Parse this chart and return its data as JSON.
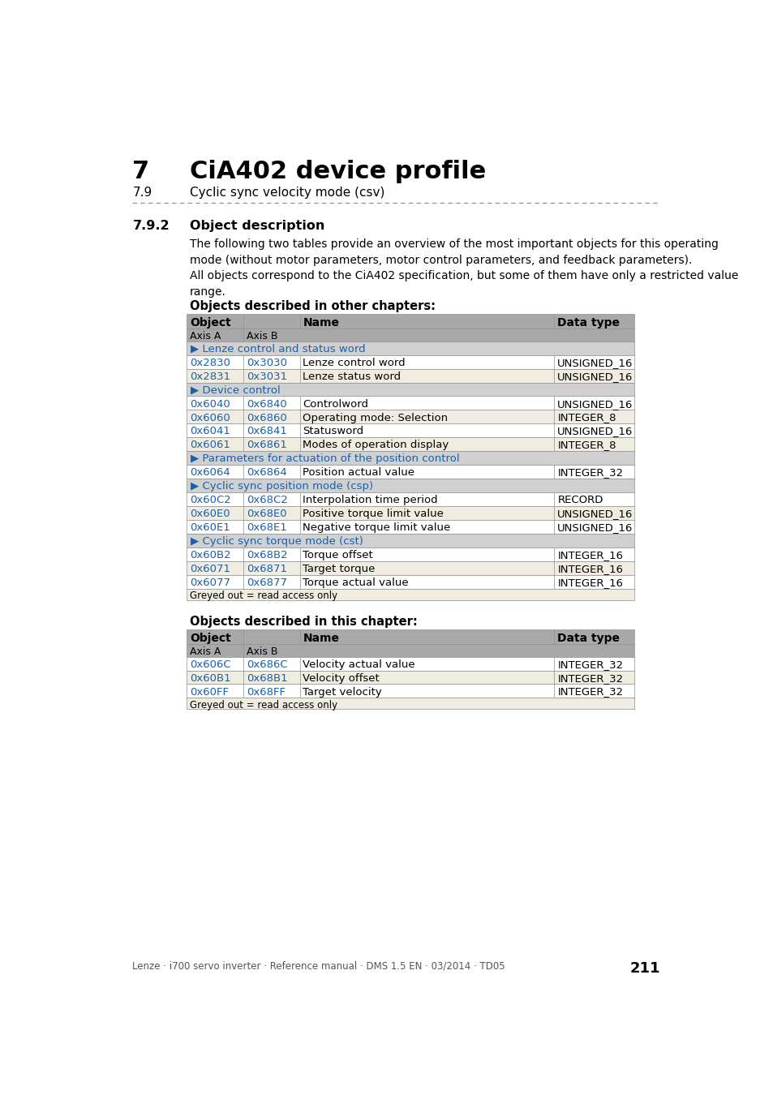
{
  "page_title_num": "7",
  "page_title": "CiA402 device profile",
  "page_subtitle_num": "7.9",
  "page_subtitle": "Cyclic sync velocity mode (csv)",
  "section_num": "7.9.2",
  "section_title": "Object description",
  "para1": "The following two tables provide an overview of the most important objects for this operating\nmode (without motor parameters, motor control parameters, and feedback parameters).",
  "para2": "All objects correspond to the CiA402 specification, but some of them have only a restricted value\nrange.",
  "table1_title": "Objects described in other chapters:",
  "table1_rows": [
    {
      "type": "section",
      "text": "▶ Lenze control and status word"
    },
    {
      "type": "data",
      "axisA": "0x2830",
      "axisB": "0x3030",
      "name": "Lenze control word",
      "dtype": "UNSIGNED_16",
      "shaded": false
    },
    {
      "type": "data",
      "axisA": "0x2831",
      "axisB": "0x3031",
      "name": "Lenze status word",
      "dtype": "UNSIGNED_16",
      "shaded": true
    },
    {
      "type": "section",
      "text": "▶ Device control"
    },
    {
      "type": "data",
      "axisA": "0x6040",
      "axisB": "0x6840",
      "name": "Controlword",
      "dtype": "UNSIGNED_16",
      "shaded": false
    },
    {
      "type": "data",
      "axisA": "0x6060",
      "axisB": "0x6860",
      "name": "Operating mode: Selection",
      "dtype": "INTEGER_8",
      "shaded": true
    },
    {
      "type": "data",
      "axisA": "0x6041",
      "axisB": "0x6841",
      "name": "Statusword",
      "dtype": "UNSIGNED_16",
      "shaded": false
    },
    {
      "type": "data",
      "axisA": "0x6061",
      "axisB": "0x6861",
      "name": "Modes of operation display",
      "dtype": "INTEGER_8",
      "shaded": true
    },
    {
      "type": "section",
      "text": "▶ Parameters for actuation of the position control"
    },
    {
      "type": "data",
      "axisA": "0x6064",
      "axisB": "0x6864",
      "name": "Position actual value",
      "dtype": "INTEGER_32",
      "shaded": false
    },
    {
      "type": "section",
      "text": "▶ Cyclic sync position mode (csp)"
    },
    {
      "type": "data",
      "axisA": "0x60C2",
      "axisB": "0x68C2",
      "name": "Interpolation time period",
      "dtype": "RECORD",
      "shaded": false
    },
    {
      "type": "data",
      "axisA": "0x60E0",
      "axisB": "0x68E0",
      "name": "Positive torque limit value",
      "dtype": "UNSIGNED_16",
      "shaded": true
    },
    {
      "type": "data",
      "axisA": "0x60E1",
      "axisB": "0x68E1",
      "name": "Negative torque limit value",
      "dtype": "UNSIGNED_16",
      "shaded": false
    },
    {
      "type": "section",
      "text": "▶ Cyclic sync torque mode (cst)"
    },
    {
      "type": "data",
      "axisA": "0x60B2",
      "axisB": "0x68B2",
      "name": "Torque offset",
      "dtype": "INTEGER_16",
      "shaded": false
    },
    {
      "type": "data",
      "axisA": "0x6071",
      "axisB": "0x6871",
      "name": "Target torque",
      "dtype": "INTEGER_16",
      "shaded": true
    },
    {
      "type": "data",
      "axisA": "0x6077",
      "axisB": "0x6877",
      "name": "Torque actual value",
      "dtype": "INTEGER_16",
      "shaded": false
    },
    {
      "type": "footer",
      "text": "Greyed out = read access only"
    }
  ],
  "table2_title": "Objects described in this chapter:",
  "table2_rows": [
    {
      "type": "data",
      "axisA": "0x606C",
      "axisB": "0x686C",
      "name": "Velocity actual value",
      "dtype": "INTEGER_32",
      "shaded": false
    },
    {
      "type": "data",
      "axisA": "0x60B1",
      "axisB": "0x68B1",
      "name": "Velocity offset",
      "dtype": "INTEGER_32",
      "shaded": true
    },
    {
      "type": "data",
      "axisA": "0x60FF",
      "axisB": "0x68FF",
      "name": "Target velocity",
      "dtype": "INTEGER_32",
      "shaded": false
    },
    {
      "type": "footer",
      "text": "Greyed out = read access only"
    }
  ],
  "footer_text": "Lenze · i700 servo inverter · Reference manual · DMS 1.5 EN · 03/2014 · TD05",
  "page_number": "211",
  "bg_color": "#ffffff",
  "header_bg": "#a8a8a8",
  "section_bg": "#d0d0d0",
  "shaded_row_bg": "#f0ede0",
  "white_row_bg": "#ffffff",
  "link_color": "#1a5fac",
  "border_color": "#909090",
  "dash_color": "#999999"
}
